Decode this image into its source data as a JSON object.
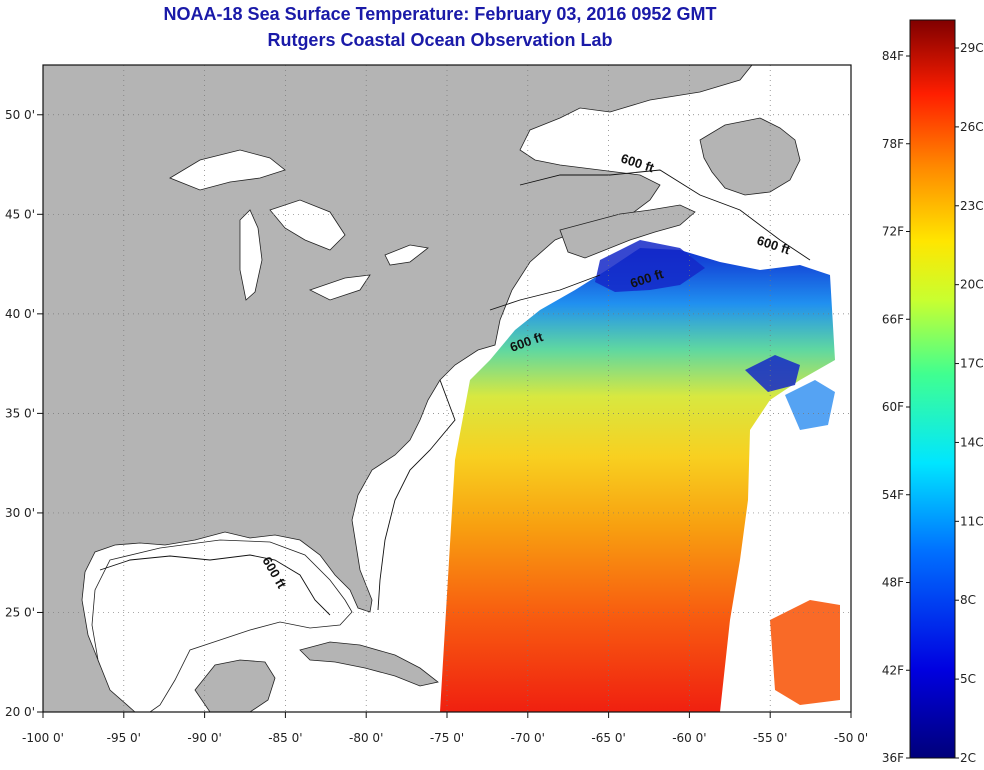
{
  "title": "NOAA-18 Sea Surface Temperature:  February 03, 2016 0952 GMT",
  "subtitle": "Rutgers Coastal Ocean Observation Lab",
  "map": {
    "lon_range": [
      -100,
      -50
    ],
    "lat_range": [
      20,
      52.5
    ],
    "lon_ticks": [
      "-100 0'",
      "-95 0'",
      "-90 0'",
      "-85 0'",
      "-80 0'",
      "-75 0'",
      "-70 0'",
      "-65 0'",
      "-60 0'",
      "-55 0'",
      "-50 0'"
    ],
    "lat_ticks": [
      "20 0'",
      "25 0'",
      "30 0'",
      "35 0'",
      "40 0'",
      "45 0'",
      "50 0'"
    ],
    "contour_label": "600 ft",
    "land_color": "#b4b4b4",
    "ocean_color": "#ffffff"
  },
  "colorbar": {
    "fahrenheit_labels": [
      "84F",
      "78F",
      "72F",
      "66F",
      "60F",
      "54F",
      "48F",
      "42F",
      "36F"
    ],
    "celsius_labels": [
      "29C",
      "26C",
      "23C",
      "20C",
      "17C",
      "14C",
      "11C",
      "8C",
      "5C",
      "2C"
    ]
  }
}
